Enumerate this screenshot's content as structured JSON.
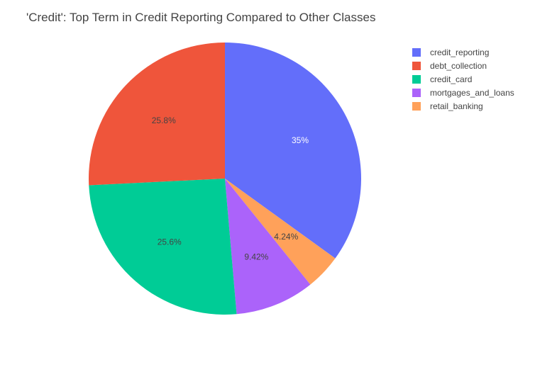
{
  "chart_data": {
    "type": "pie",
    "title": "'Credit': Top Term in Credit Reporting Compared to Other Classes",
    "labels": [
      "credit_reporting",
      "debt_collection",
      "credit_card",
      "mortgages_and_loans",
      "retail_banking"
    ],
    "values": [
      35,
      25.8,
      25.6,
      9.42,
      4.24
    ],
    "display_labels": [
      "35%",
      "25.8%",
      "25.6%",
      "9.42%",
      "4.24%"
    ],
    "slice_order": [
      "credit_reporting",
      "retail_banking",
      "mortgages_and_loans",
      "credit_card",
      "debt_collection"
    ],
    "direction": "clockwise",
    "start": "12 o'clock",
    "legend_position": "top-right",
    "colors": {
      "credit_reporting": "#636efa",
      "debt_collection": "#ef553b",
      "credit_card": "#00cc96",
      "mortgages_and_loans": "#ab63fa",
      "retail_banking": "#ffa15a"
    }
  }
}
